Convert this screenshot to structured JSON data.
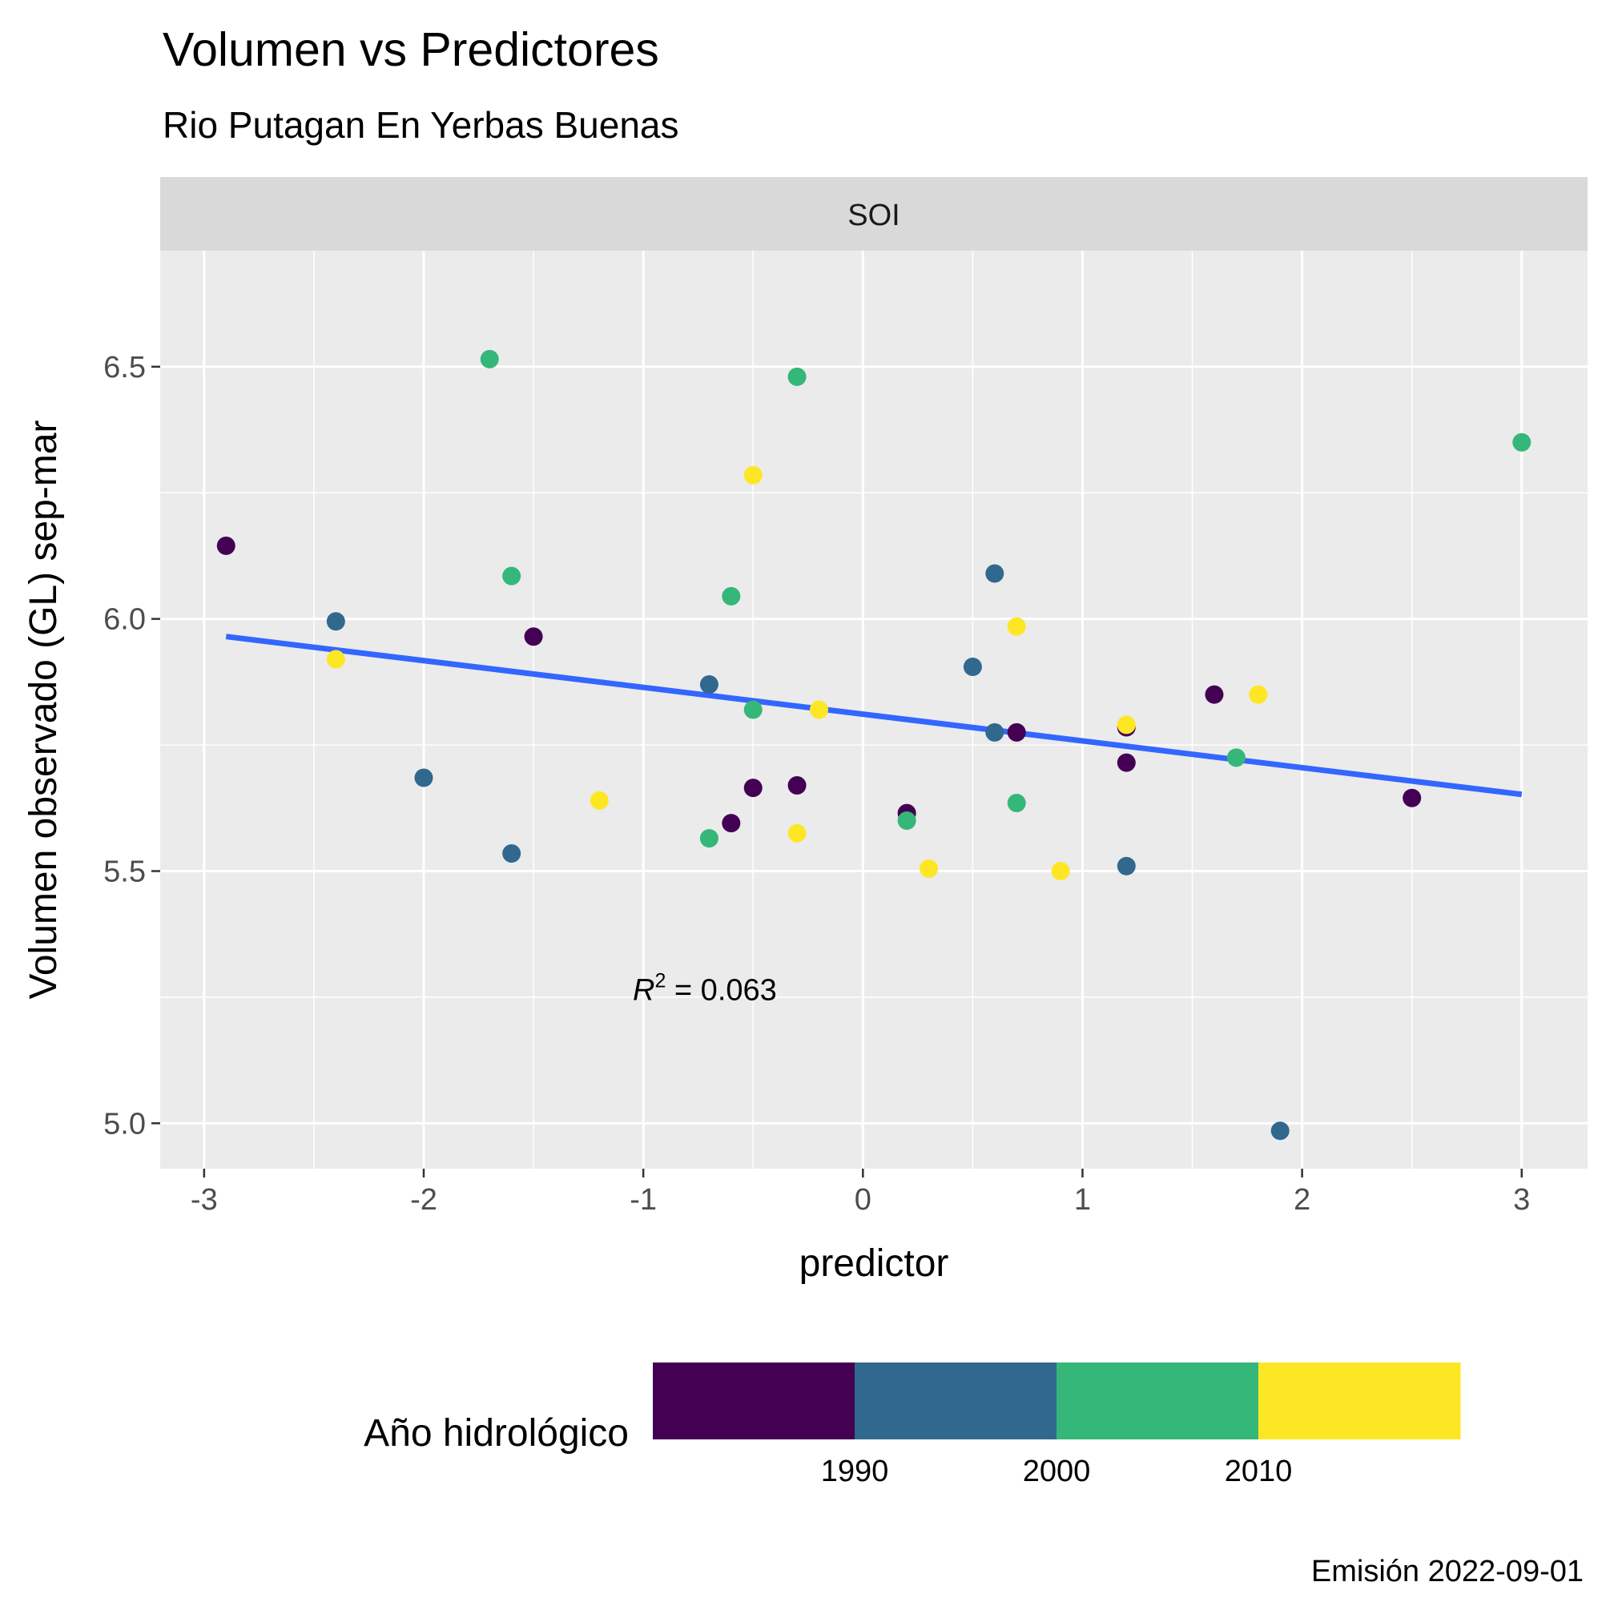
{
  "chart_data": {
    "type": "scatter",
    "title": "Volumen vs Predictores",
    "subtitle": "Rio Putagan En Yerbas Buenas",
    "facet": "SOI",
    "xlabel": "predictor",
    "ylabel": "Volumen observado (GL) sep-mar",
    "xlim": [
      -3.2,
      3.3
    ],
    "ylim": [
      4.91,
      6.73
    ],
    "x_ticks": [
      -3,
      -2,
      -1,
      0,
      1,
      2,
      3
    ],
    "x_tick_labels": [
      "-3",
      "-2",
      "-1",
      "0",
      "1",
      "2",
      "3"
    ],
    "y_ticks": [
      5.0,
      5.5,
      6.0,
      6.5
    ],
    "y_tick_labels": [
      "5.0",
      "5.5",
      "6.0",
      "6.5"
    ],
    "grid": true,
    "annotation": {
      "prefix": "R",
      "superscript": "2",
      "text": " = 0.063",
      "x": -0.72,
      "y": 5.265
    },
    "trend_line": {
      "x": [
        -2.9,
        3.0
      ],
      "y": [
        5.965,
        5.652
      ],
      "color": "#3366FF"
    },
    "legend": {
      "title": "Año hidrológico",
      "placement": "bottom",
      "bins": [
        {
          "color": "#440154"
        },
        {
          "color": "#31688E"
        },
        {
          "color": "#35B779"
        },
        {
          "color": "#FDE725"
        }
      ],
      "labels": [
        "1990",
        "2000",
        "2010"
      ]
    },
    "caption": "Emisión 2022-09-01",
    "points": [
      {
        "x": -2.9,
        "y": 6.145,
        "group": 0
      },
      {
        "x": -1.5,
        "y": 5.965,
        "group": 0
      },
      {
        "x": -0.6,
        "y": 5.595,
        "group": 0
      },
      {
        "x": -0.5,
        "y": 5.665,
        "group": 0
      },
      {
        "x": -0.3,
        "y": 5.67,
        "group": 0
      },
      {
        "x": 0.2,
        "y": 5.615,
        "group": 0
      },
      {
        "x": 0.7,
        "y": 5.775,
        "group": 0
      },
      {
        "x": 1.2,
        "y": 5.785,
        "group": 0
      },
      {
        "x": 1.2,
        "y": 5.715,
        "group": 0
      },
      {
        "x": 1.6,
        "y": 5.85,
        "group": 0
      },
      {
        "x": 2.5,
        "y": 5.645,
        "group": 0
      },
      {
        "x": -2.4,
        "y": 5.995,
        "group": 1
      },
      {
        "x": -2.0,
        "y": 5.685,
        "group": 1
      },
      {
        "x": -1.6,
        "y": 5.535,
        "group": 1
      },
      {
        "x": -0.7,
        "y": 5.87,
        "group": 1
      },
      {
        "x": 0.5,
        "y": 5.905,
        "group": 1
      },
      {
        "x": 0.6,
        "y": 6.09,
        "group": 1
      },
      {
        "x": 0.6,
        "y": 5.775,
        "group": 1
      },
      {
        "x": 1.2,
        "y": 5.51,
        "group": 1
      },
      {
        "x": 1.9,
        "y": 4.985,
        "group": 1
      },
      {
        "x": -1.7,
        "y": 6.515,
        "group": 2
      },
      {
        "x": -1.6,
        "y": 6.085,
        "group": 2
      },
      {
        "x": -0.7,
        "y": 5.565,
        "group": 2
      },
      {
        "x": -0.6,
        "y": 6.045,
        "group": 2
      },
      {
        "x": -0.5,
        "y": 5.82,
        "group": 2
      },
      {
        "x": -0.3,
        "y": 6.48,
        "group": 2
      },
      {
        "x": 0.2,
        "y": 5.6,
        "group": 2
      },
      {
        "x": 0.7,
        "y": 5.635,
        "group": 2
      },
      {
        "x": 1.7,
        "y": 5.725,
        "group": 2
      },
      {
        "x": 3.0,
        "y": 6.35,
        "group": 2
      },
      {
        "x": -2.4,
        "y": 5.92,
        "group": 3
      },
      {
        "x": -1.2,
        "y": 5.64,
        "group": 3
      },
      {
        "x": -0.5,
        "y": 6.285,
        "group": 3
      },
      {
        "x": -0.3,
        "y": 5.575,
        "group": 3
      },
      {
        "x": -0.2,
        "y": 5.82,
        "group": 3
      },
      {
        "x": 0.3,
        "y": 5.505,
        "group": 3
      },
      {
        "x": 0.7,
        "y": 5.985,
        "group": 3
      },
      {
        "x": 0.9,
        "y": 5.5,
        "group": 3
      },
      {
        "x": 1.2,
        "y": 5.79,
        "group": 3
      },
      {
        "x": 1.8,
        "y": 5.85,
        "group": 3
      }
    ]
  }
}
